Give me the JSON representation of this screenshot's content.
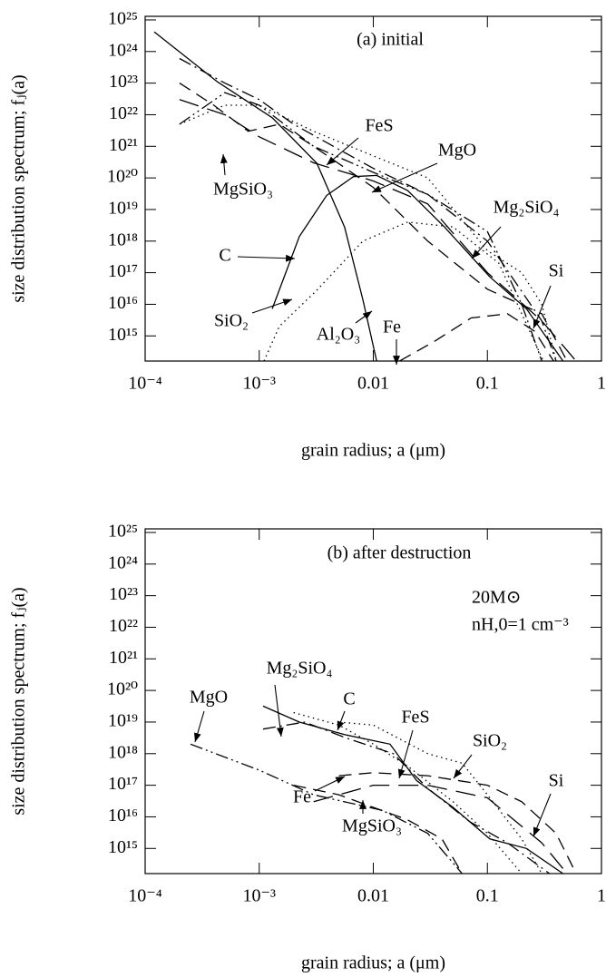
{
  "chart_data": [
    {
      "type": "line",
      "title": "(a) initial",
      "xlabel": "grain radius; a (μm)",
      "ylabel": "size distribution spectrum; fⱼ(a)",
      "log_x": true,
      "log_y": true,
      "xlim": [
        0.0001,
        1
      ],
      "ylim": [
        160000000000000.0,
        1.3e+25
      ],
      "xticks": [
        {
          "value": 0.0001,
          "label": "10⁻⁴"
        },
        {
          "value": 0.001,
          "label": "10⁻³"
        },
        0.01,
        0.1,
        1
      ],
      "yticks": [
        {
          "value": 1000000000000000.0,
          "label": "10¹⁵"
        },
        {
          "value": 1e+16,
          "label": "10¹⁶"
        },
        {
          "value": 1e+17,
          "label": "10¹⁷"
        },
        {
          "value": 1e+18,
          "label": "10¹⁸"
        },
        {
          "value": 1e+19,
          "label": "10¹⁹"
        },
        {
          "value": 1e+20,
          "label": "10²⁰"
        },
        {
          "value": 1e+21,
          "label": "10²¹"
        },
        {
          "value": 1e+22,
          "label": "10²²"
        },
        {
          "value": 1e+23,
          "label": "10²³"
        },
        {
          "value": 1e+24,
          "label": "10²⁴"
        },
        {
          "value": 1e+25,
          "label": "10²⁵"
        }
      ],
      "series": [
        {
          "name": "Al₂O₃",
          "color": "#000",
          "dash": "solid",
          "x": [
            0.00012,
            0.00043,
            0.0013,
            0.0032,
            0.0056,
            0.0081,
            0.0107
          ],
          "values": [
            4.2e+24,
            1.1e+23,
            8e+21,
            2.9e+20,
            2.8e+18,
            1.4e+16,
            160000000000000.0
          ]
        },
        {
          "name": "C",
          "color": "#000",
          "dash": "solid",
          "x": [
            0.0013,
            0.00225,
            0.0039,
            0.0067,
            0.0107,
            0.02,
            0.042,
            0.105,
            0.22,
            0.46
          ],
          "values": [
            7200000000000000.0,
            1.4e+18,
            2.8e+19,
            1.1e+20,
            1.2e+20,
            4e+19,
            2.8e+18,
            7.4e+16,
            7200000000000000.0,
            160000000000000.0
          ]
        },
        {
          "name": "SiO₂",
          "color": "#000",
          "dash": "dotted",
          "x": [
            0.0011,
            0.0015,
            0.0032,
            0.0081,
            0.02,
            0.05,
            0.126,
            0.2,
            0.31
          ],
          "values": [
            160000000000000.0,
            2000000000000000.0,
            2.8e+16,
            1e+18,
            4e+18,
            2.8e+18,
            2e+17,
            5000000000000000.0,
            160000000000000.0
          ]
        },
        {
          "name": "Fe",
          "color": "#000",
          "dash": "dashed",
          "x": [
            0.017,
            0.035,
            0.072,
            0.15,
            0.26,
            0.38
          ],
          "values": [
            160000000000000.0,
            700000000000000.0,
            3700000000000000.0,
            5000000000000000.0,
            1400000000000000.0,
            160000000000000.0
          ]
        },
        {
          "name": "Si",
          "color": "#000",
          "dash": "long-dash",
          "x": [
            0.0002,
            0.0005,
            0.001,
            0.003,
            0.01,
            0.03,
            0.1,
            0.3,
            0.6
          ],
          "values": [
            3e+22,
            1e+22,
            2e+21,
            3e+20,
            8e+19,
            1.5e+19,
            1e+17,
            3000000000000000.0,
            160000000000000.0
          ]
        },
        {
          "name": "MgSiO₃",
          "color": "#000",
          "dash": "dashed",
          "x": [
            0.0002,
            0.0004,
            0.0008,
            0.0015,
            0.003,
            0.01,
            0.03,
            0.1,
            0.3,
            0.5
          ],
          "values": [
            1e+23,
            2e+22,
            3e+21,
            5e+21,
            1e+21,
            5e+19,
            1e+18,
            3e+16,
            5000000000000000.0,
            160000000000000.0
          ]
        },
        {
          "name": "FeS",
          "color": "#000",
          "dash": "dash-dot",
          "x": [
            0.0002,
            0.0005,
            0.001,
            0.002,
            0.005,
            0.01,
            0.03,
            0.1,
            0.3,
            0.4
          ],
          "values": [
            6e+23,
            1e+23,
            3e+22,
            5e+21,
            8e+20,
            2e+20,
            3e+19,
            1e+18,
            3000000000000000.0,
            160000000000000.0
          ]
        },
        {
          "name": "MgO",
          "color": "#000",
          "dash": "dash-dot-dot",
          "x": [
            0.0002,
            0.0005,
            0.001,
            0.003,
            0.01,
            0.03,
            0.1,
            0.2,
            0.3
          ],
          "values": [
            5e+21,
            5e+22,
            2e+22,
            1e+21,
            1.5e+20,
            3e+19,
            2e+18,
            1e+16,
            160000000000000.0
          ]
        },
        {
          "name": "Mg₂SiO₄",
          "color": "#000",
          "dash": "dotted",
          "x": [
            0.0002,
            0.0005,
            0.001,
            0.003,
            0.01,
            0.03,
            0.1,
            0.2,
            0.3,
            0.4
          ],
          "values": [
            5e+21,
            2e+22,
            2e+22,
            3e+21,
            5e+20,
            1e+20,
            5e+17,
            1e+17,
            1e+16,
            160000000000000.0
          ]
        }
      ]
    },
    {
      "type": "line",
      "title": "(b) after destruction",
      "xlabel": "grain radius; a (μm)",
      "ylabel": "size distribution spectrum; fⱼ(a)",
      "notes": [
        "20M⊙",
        "nH,0=1 cm⁻³"
      ],
      "log_x": true,
      "log_y": true,
      "xlim": [
        0.0001,
        1
      ],
      "ylim": [
        160000000000000.0,
        1.3e+25
      ],
      "xticks": [
        {
          "value": 0.0001,
          "label": "10⁻⁴"
        },
        {
          "value": 0.001,
          "label": "10⁻³"
        },
        0.01,
        0.1,
        1
      ],
      "yticks": [
        {
          "value": 1000000000000000.0,
          "label": "10¹⁵"
        },
        {
          "value": 1e+16,
          "label": "10¹⁶"
        },
        {
          "value": 1e+17,
          "label": "10¹⁷"
        },
        {
          "value": 1e+18,
          "label": "10¹⁸"
        },
        {
          "value": 1e+19,
          "label": "10¹⁹"
        },
        {
          "value": 1e+20,
          "label": "10²⁰"
        },
        {
          "value": 1e+21,
          "label": "10²¹"
        },
        {
          "value": 1e+22,
          "label": "10²²"
        },
        {
          "value": 1e+23,
          "label": "10²³"
        },
        {
          "value": 1e+24,
          "label": "10²⁴"
        },
        {
          "value": 1e+25,
          "label": "10²⁵"
        }
      ],
      "series": [
        {
          "name": "C",
          "color": "#000",
          "dash": "solid",
          "x": [
            0.00108,
            0.00225,
            0.0056,
            0.014,
            0.024,
            0.05,
            0.105,
            0.22,
            0.46
          ],
          "values": [
            3.2e+19,
            1e+19,
            4e+18,
            2e+18,
            1.4e+17,
            2e+16,
            2000000000000000.0,
            1000000000000000.0,
            160000000000000.0
          ]
        },
        {
          "name": "Mg₂SiO₄",
          "color": "#000",
          "dash": "dash-dot",
          "x": [
            0.00108,
            0.0025,
            0.006,
            0.015,
            0.03,
            0.07,
            0.15,
            0.35
          ],
          "values": [
            6e+18,
            1e+19,
            3e+18,
            1e+18,
            8e+16,
            7000000000000000.0,
            1500000000000000.0,
            160000000000000.0
          ]
        },
        {
          "name": "MgO",
          "color": "#000",
          "dash": "dash-dot-dot",
          "x": [
            0.00025,
            0.001,
            0.003,
            0.012,
            0.03,
            0.06
          ],
          "values": [
            2e+18,
            3e+17,
            5e+16,
            1.6e+16,
            3000000000000000.0,
            160000000000000.0
          ]
        },
        {
          "name": "FeS",
          "color": "#000",
          "dash": "dotted",
          "x": [
            0.002,
            0.005,
            0.01,
            0.02,
            0.05,
            0.1,
            0.2
          ],
          "values": [
            2e+19,
            8e+18,
            2e+18,
            4e+17,
            3e+16,
            3000000000000000.0,
            160000000000000.0
          ]
        },
        {
          "name": "SiO₂",
          "color": "#000",
          "dash": "dotted",
          "x": [
            0.005,
            0.01,
            0.03,
            0.06,
            0.1,
            0.2,
            0.3
          ],
          "values": [
            1e+19,
            8e+18,
            1e+18,
            5e+17,
            5e+16,
            2000000000000000.0,
            160000000000000.0
          ]
        },
        {
          "name": "Fe",
          "color": "#000",
          "dash": "dashed",
          "x": [
            0.005,
            0.01,
            0.03,
            0.1,
            0.2,
            0.4,
            0.6
          ],
          "values": [
            2e+17,
            2.5e+17,
            2e+17,
            1e+17,
            3e+16,
            3000000000000000.0,
            160000000000000.0
          ]
        },
        {
          "name": "Si",
          "color": "#000",
          "dash": "long-dash",
          "x": [
            0.003,
            0.01,
            0.03,
            0.1,
            0.2,
            0.3,
            0.5
          ],
          "values": [
            3e+16,
            1e+17,
            1e+17,
            4e+16,
            5000000000000000.0,
            1500000000000000.0,
            160000000000000.0
          ]
        },
        {
          "name": "MgSiO₃",
          "color": "#000",
          "dash": "dashed",
          "x": [
            0.002,
            0.005,
            0.01,
            0.02,
            0.04,
            0.06
          ],
          "values": [
            1e+17,
            5e+16,
            2e+16,
            8000000000000000.0,
            2000000000000000.0,
            160000000000000.0
          ]
        }
      ]
    }
  ]
}
